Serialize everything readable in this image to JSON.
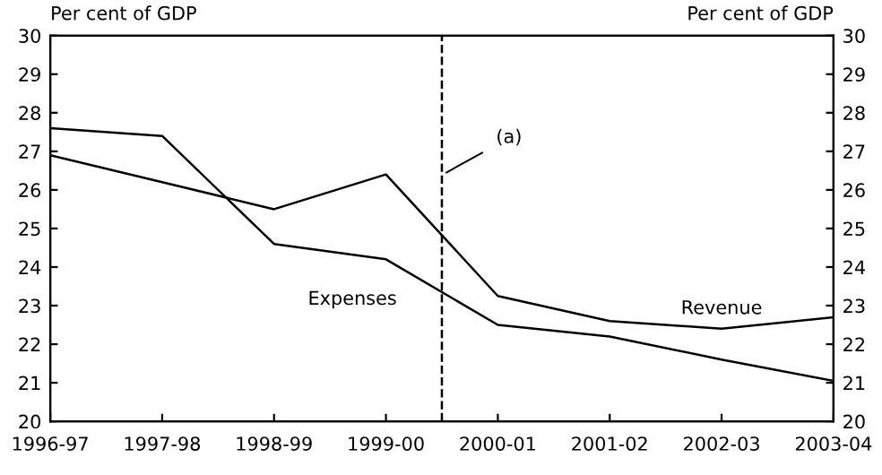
{
  "chart_data": {
    "type": "line",
    "ylabel": "Per cent of GDP",
    "y2label": "Per cent of GDP",
    "categories": [
      "1996-97",
      "1997-98",
      "1998-99",
      "1999-00",
      "2000-01",
      "2001-02",
      "2002-03",
      "2003-04"
    ],
    "series": [
      {
        "name": "Expenses",
        "color": "#000000",
        "values": [
          27.6,
          27.4,
          24.6,
          24.2,
          22.5,
          22.2,
          21.6,
          21.05
        ]
      },
      {
        "name": "Revenue",
        "color": "#000000",
        "values": [
          26.9,
          26.2,
          25.5,
          26.4,
          23.25,
          22.6,
          22.4,
          22.7
        ]
      }
    ],
    "ylim": [
      20,
      30
    ],
    "yticks": [
      20,
      21,
      22,
      23,
      24,
      25,
      26,
      27,
      28,
      29,
      30
    ],
    "y2lim": [
      20,
      30
    ],
    "y2ticks": [
      20,
      21,
      22,
      23,
      24,
      25,
      26,
      27,
      28,
      29,
      30
    ],
    "annotations": [
      "(a)"
    ],
    "grid": false,
    "legend": false,
    "marker": "none",
    "line_style": "solid"
  }
}
